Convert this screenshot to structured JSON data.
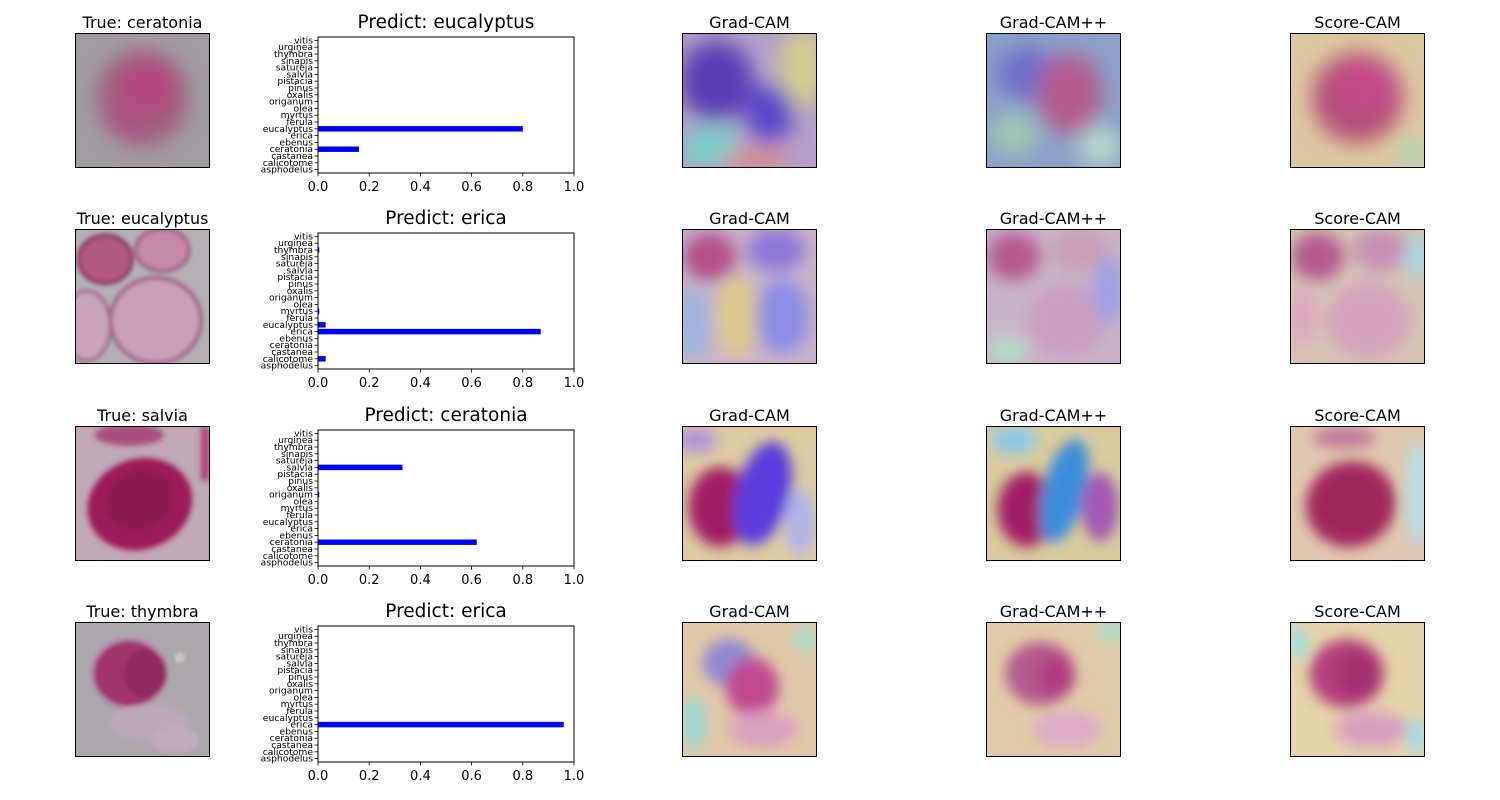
{
  "labels": {
    "true_prefix": "True: ",
    "predict_prefix": "Predict: ",
    "gradcam": "Grad-CAM",
    "gradcampp": "Grad-CAM++",
    "scorecam": "Score-CAM"
  },
  "colors": {
    "bar": "#0000ff",
    "axis": "#000000"
  },
  "rows": [
    {
      "true_label": "True: ceratonia",
      "predict_label": "Predict: eucalyptus",
      "gradcam": "Grad-CAM",
      "gradcampp": "Grad-CAM++",
      "scorecam": "Score-CAM"
    },
    {
      "true_label": "True: eucalyptus",
      "predict_label": "Predict: erica",
      "gradcam": "Grad-CAM",
      "gradcampp": "Grad-CAM++",
      "scorecam": "Score-CAM"
    },
    {
      "true_label": "True: salvia",
      "predict_label": "Predict: ceratonia",
      "gradcam": "Grad-CAM",
      "gradcampp": "Grad-CAM++",
      "scorecam": "Score-CAM"
    },
    {
      "true_label": "True: thymbra",
      "predict_label": "Predict: erica",
      "gradcam": "Grad-CAM",
      "gradcampp": "Grad-CAM++",
      "scorecam": "Score-CAM"
    }
  ],
  "chart_data": [
    {
      "type": "bar",
      "orientation": "horizontal",
      "title": "Predict: eucalyptus",
      "categories": [
        "asphodelus",
        "calicotome",
        "castanea",
        "ceratonia",
        "ebenus",
        "erica",
        "eucalyptus",
        "ferula",
        "myrtus",
        "olea",
        "origanum",
        "oxalis",
        "pinus",
        "pistacia",
        "salvia",
        "satureja",
        "sinapis",
        "thymbra",
        "urginea",
        "vitis"
      ],
      "values": [
        0,
        0,
        0,
        0.16,
        0,
        0,
        0.8,
        0,
        0,
        0,
        0,
        0,
        0,
        0,
        0,
        0,
        0,
        0,
        0,
        0
      ],
      "xlim": [
        0,
        1.0
      ],
      "xticks": [
        "0.0",
        "0.2",
        "0.4",
        "0.6",
        "0.8",
        "1.0"
      ]
    },
    {
      "type": "bar",
      "orientation": "horizontal",
      "title": "Predict: erica",
      "categories": [
        "asphodelus",
        "calicotome",
        "castanea",
        "ceratonia",
        "ebenus",
        "erica",
        "eucalyptus",
        "ferula",
        "myrtus",
        "olea",
        "origanum",
        "oxalis",
        "pinus",
        "pistacia",
        "salvia",
        "satureja",
        "sinapis",
        "thymbra",
        "urginea",
        "vitis"
      ],
      "values": [
        0,
        0.03,
        0,
        0,
        0,
        0.87,
        0.03,
        0,
        0.005,
        0,
        0,
        0,
        0,
        0,
        0,
        0,
        0,
        0.005,
        0,
        0
      ],
      "xlim": [
        0,
        1.0
      ],
      "xticks": [
        "0.0",
        "0.2",
        "0.4",
        "0.6",
        "0.8",
        "1.0"
      ]
    },
    {
      "type": "bar",
      "orientation": "horizontal",
      "title": "Predict: ceratonia",
      "categories": [
        "asphodelus",
        "calicotome",
        "castanea",
        "ceratonia",
        "ebenus",
        "erica",
        "eucalyptus",
        "ferula",
        "myrtus",
        "olea",
        "origanum",
        "oxalis",
        "pinus",
        "pistacia",
        "salvia",
        "satureja",
        "sinapis",
        "thymbra",
        "urginea",
        "vitis"
      ],
      "values": [
        0,
        0,
        0,
        0.62,
        0,
        0,
        0,
        0,
        0,
        0,
        0.005,
        0,
        0,
        0,
        0.33,
        0,
        0,
        0,
        0,
        0
      ],
      "xlim": [
        0,
        1.0
      ],
      "xticks": [
        "0.0",
        "0.2",
        "0.4",
        "0.6",
        "0.8",
        "1.0"
      ]
    },
    {
      "type": "bar",
      "orientation": "horizontal",
      "title": "Predict: erica",
      "categories": [
        "asphodelus",
        "calicotome",
        "castanea",
        "ceratonia",
        "ebenus",
        "erica",
        "eucalyptus",
        "ferula",
        "myrtus",
        "olea",
        "origanum",
        "oxalis",
        "pinus",
        "pistacia",
        "salvia",
        "satureja",
        "sinapis",
        "thymbra",
        "urginea",
        "vitis"
      ],
      "values": [
        0,
        0,
        0,
        0,
        0,
        0.96,
        0,
        0,
        0,
        0,
        0,
        0,
        0,
        0,
        0,
        0,
        0,
        0,
        0,
        0
      ],
      "xlim": [
        0,
        1.0
      ],
      "xticks": [
        "0.0",
        "0.2",
        "0.4",
        "0.6",
        "0.8",
        "1.0"
      ]
    }
  ]
}
